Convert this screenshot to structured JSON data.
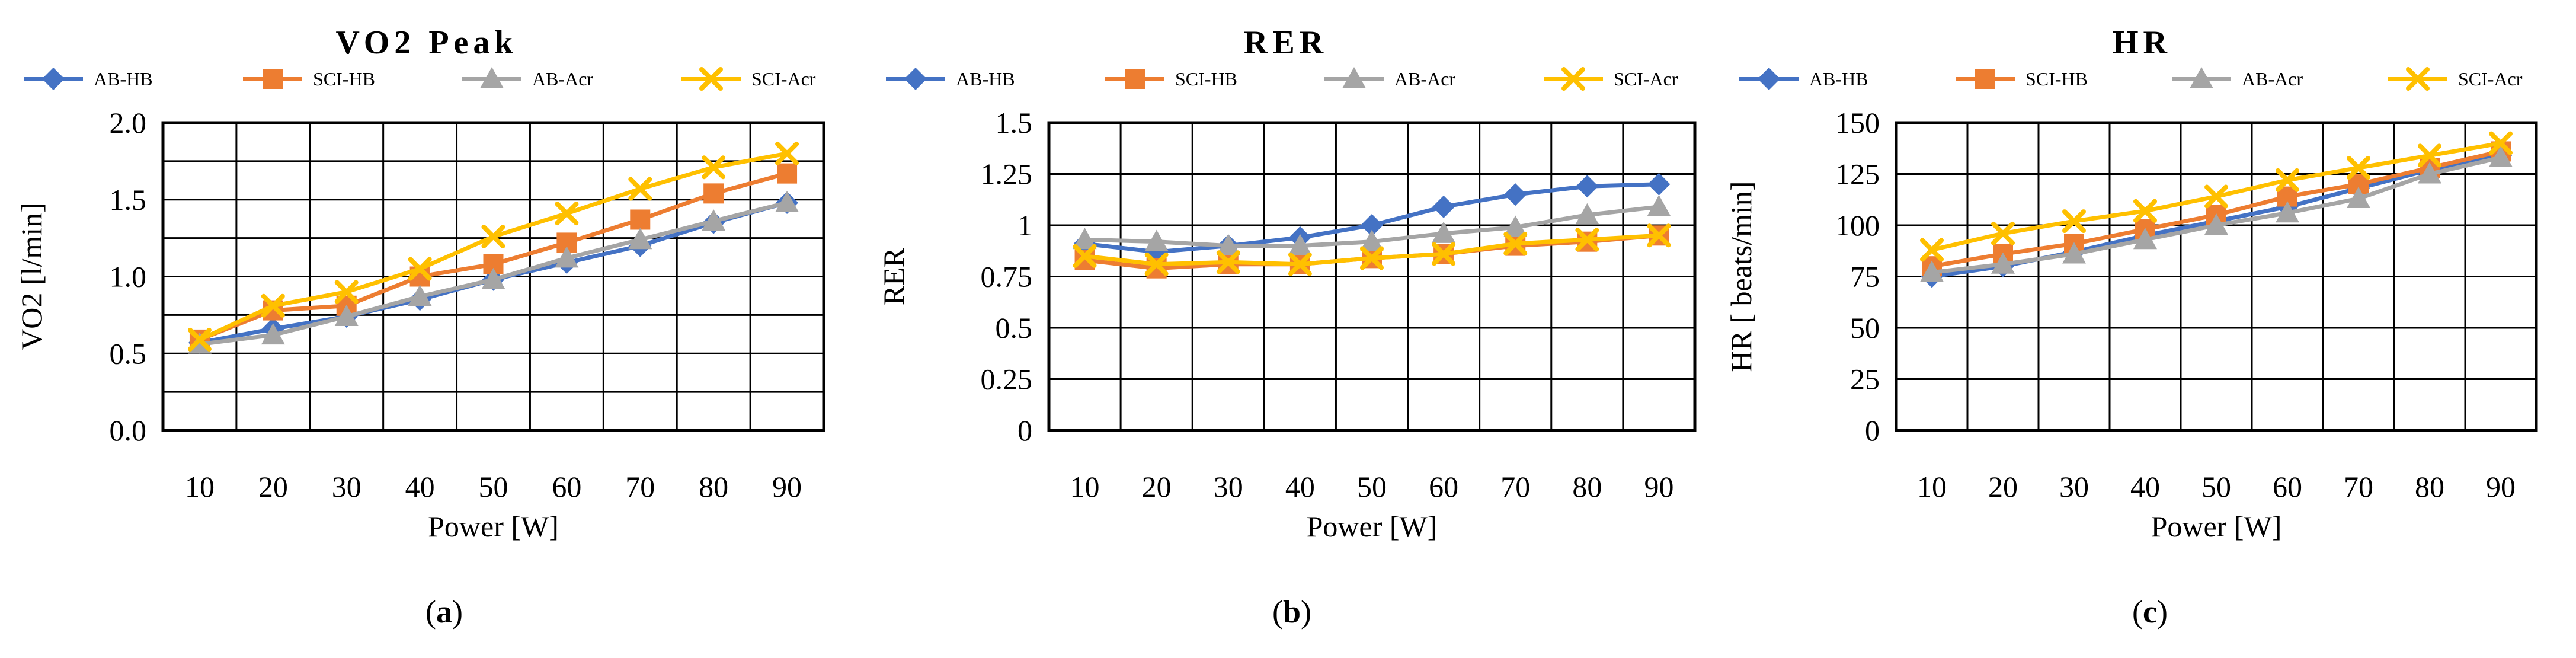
{
  "colors": {
    "AB-HB": "#4472C4",
    "SCI-HB": "#ED7D31",
    "AB-Acr": "#A5A5A5",
    "SCI-Acr": "#FFC000"
  },
  "legend": [
    "AB-HB",
    "SCI-HB",
    "AB-Acr",
    "SCI-Acr"
  ],
  "chart_data": [
    {
      "type": "line",
      "title": "VO2 Peak",
      "sublabel": "a",
      "xlabel": "Power [W]",
      "ylabel": "VO2 [l/min]",
      "categories": [
        "10",
        "20",
        "30",
        "40",
        "50",
        "60",
        "70",
        "80",
        "90"
      ],
      "ylim": [
        0,
        2.0
      ],
      "yticks": [
        "0.0",
        "0.5",
        "1.0",
        "1.5",
        "2.0"
      ],
      "ytick_values": [
        0,
        0.5,
        1.0,
        1.5,
        2.0
      ],
      "grid_step": 0.25,
      "series": [
        {
          "name": "AB-HB",
          "marker": "diamond",
          "values": [
            0.57,
            0.66,
            0.74,
            0.85,
            0.98,
            1.09,
            1.2,
            1.35,
            1.48
          ]
        },
        {
          "name": "SCI-HB",
          "marker": "square",
          "values": [
            0.59,
            0.78,
            0.81,
            1.0,
            1.08,
            1.22,
            1.37,
            1.54,
            1.67
          ]
        },
        {
          "name": "AB-Acr",
          "marker": "triangle",
          "values": [
            0.56,
            0.62,
            0.74,
            0.87,
            0.98,
            1.12,
            1.24,
            1.36,
            1.48
          ]
        },
        {
          "name": "SCI-Acr",
          "marker": "x",
          "values": [
            0.59,
            0.81,
            0.9,
            1.05,
            1.26,
            1.41,
            1.57,
            1.71,
            1.8
          ]
        }
      ]
    },
    {
      "type": "line",
      "title": "RER",
      "sublabel": "b",
      "xlabel": "Power [W]",
      "ylabel": "RER",
      "categories": [
        "10",
        "20",
        "30",
        "40",
        "50",
        "60",
        "70",
        "80",
        "90"
      ],
      "ylim": [
        0,
        1.5
      ],
      "yticks": [
        "0",
        "0.25",
        "0.5",
        "0.75",
        "1",
        "1.25",
        "1.5"
      ],
      "ytick_values": [
        0,
        0.25,
        0.5,
        0.75,
        1.0,
        1.25,
        1.5
      ],
      "grid_step": 0.25,
      "series": [
        {
          "name": "AB-HB",
          "marker": "diamond",
          "values": [
            0.91,
            0.87,
            0.9,
            0.94,
            1.0,
            1.09,
            1.15,
            1.19,
            1.2
          ]
        },
        {
          "name": "SCI-HB",
          "marker": "square",
          "values": [
            0.83,
            0.79,
            0.81,
            0.81,
            0.84,
            0.86,
            0.9,
            0.92,
            0.95
          ]
        },
        {
          "name": "AB-Acr",
          "marker": "triangle",
          "values": [
            0.93,
            0.92,
            0.9,
            0.9,
            0.92,
            0.96,
            0.99,
            1.05,
            1.09
          ]
        },
        {
          "name": "SCI-Acr",
          "marker": "x",
          "values": [
            0.85,
            0.81,
            0.82,
            0.81,
            0.84,
            0.86,
            0.91,
            0.93,
            0.95
          ]
        }
      ]
    },
    {
      "type": "line",
      "title": "HR",
      "sublabel": "c",
      "xlabel": "Power [W]",
      "ylabel": "HR [ beats/min]",
      "categories": [
        "10",
        "20",
        "30",
        "40",
        "50",
        "60",
        "70",
        "80",
        "90"
      ],
      "ylim": [
        0,
        150
      ],
      "yticks": [
        "0",
        "25",
        "50",
        "75",
        "100",
        "125",
        "150"
      ],
      "ytick_values": [
        0,
        25,
        50,
        75,
        100,
        125,
        150
      ],
      "grid_step": 25,
      "series": [
        {
          "name": "AB-HB",
          "marker": "diamond",
          "values": [
            75,
            80,
            87,
            95,
            102,
            109,
            118,
            127,
            134
          ]
        },
        {
          "name": "SCI-HB",
          "marker": "square",
          "values": [
            80,
            86,
            91,
            98,
            105,
            114,
            120,
            128,
            136
          ]
        },
        {
          "name": "AB-Acr",
          "marker": "triangle",
          "values": [
            77,
            81,
            86,
            93,
            100,
            106,
            113,
            125,
            133
          ]
        },
        {
          "name": "SCI-Acr",
          "marker": "x",
          "values": [
            88,
            96,
            102,
            107,
            114,
            122,
            128,
            134,
            140
          ]
        }
      ]
    }
  ]
}
